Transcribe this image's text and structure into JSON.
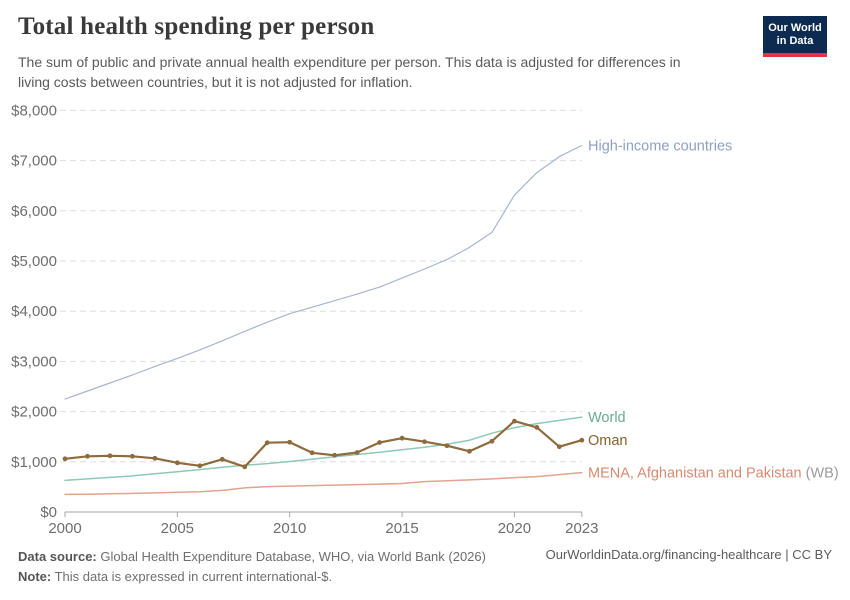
{
  "logo": {
    "line1": "Our World",
    "line2": "in Data",
    "bg": "#0d2b51",
    "stripe": "#e0363f"
  },
  "chart_data": {
    "type": "line",
    "title": "Total health spending per person",
    "subtitle_lines": [
      "The sum of public and private annual health expenditure per person. This data is adjusted for differences in",
      "living costs between countries, but it is not adjusted for inflation."
    ],
    "xlabel": "",
    "ylabel": "",
    "xlim": [
      2000,
      2023
    ],
    "ylim": [
      0,
      8000
    ],
    "grid": "horizontal-dashed",
    "legend_position": "end-of-line-labels",
    "x": [
      2000,
      2001,
      2002,
      2003,
      2004,
      2005,
      2006,
      2007,
      2008,
      2009,
      2010,
      2011,
      2012,
      2013,
      2014,
      2015,
      2016,
      2017,
      2018,
      2019,
      2020,
      2021,
      2022,
      2023
    ],
    "xticks": [
      {
        "v": 2000,
        "label": "2000"
      },
      {
        "v": 2005,
        "label": "2005"
      },
      {
        "v": 2010,
        "label": "2010"
      },
      {
        "v": 2015,
        "label": "2015"
      },
      {
        "v": 2020,
        "label": "2020"
      },
      {
        "v": 2023,
        "label": "2023"
      }
    ],
    "yticks": [
      {
        "v": 0,
        "label": "$0"
      },
      {
        "v": 1000,
        "label": "$1,000"
      },
      {
        "v": 2000,
        "label": "$2,000"
      },
      {
        "v": 3000,
        "label": "$3,000"
      },
      {
        "v": 4000,
        "label": "$4,000"
      },
      {
        "v": 5000,
        "label": "$5,000"
      },
      {
        "v": 6000,
        "label": "$6,000"
      },
      {
        "v": 7000,
        "label": "$7,000"
      },
      {
        "v": 8000,
        "label": "$8,000"
      }
    ],
    "series": [
      {
        "name": "High-income countries",
        "suffix": "",
        "color": "#a6b5d3",
        "label_color": "#8ca2c5",
        "suffix_color": "#9b9b9b",
        "width": 1.2,
        "markers": false,
        "values": [
          2250,
          2410,
          2570,
          2730,
          2900,
          3060,
          3230,
          3410,
          3600,
          3780,
          3950,
          4080,
          4210,
          4340,
          4480,
          4660,
          4840,
          5030,
          5270,
          5570,
          6310,
          6760,
          7080,
          7300
        ]
      },
      {
        "name": "World",
        "suffix": "",
        "color": "#8fc9b2",
        "label_color": "#68ab8d",
        "suffix_color": "#9b9b9b",
        "width": 1.5,
        "markers": false,
        "values": [
          630,
          660,
          690,
          720,
          760,
          800,
          845,
          890,
          930,
          965,
          1005,
          1050,
          1100,
          1145,
          1190,
          1240,
          1290,
          1350,
          1430,
          1570,
          1680,
          1760,
          1825,
          1890
        ]
      },
      {
        "name": "MENA, Afghanistan and Pakistan",
        "suffix": " (WB)",
        "color": "#e2a28e",
        "label_color": "#d88a70",
        "suffix_color": "#9b9b9b",
        "width": 1.5,
        "markers": false,
        "values": [
          350,
          355,
          362,
          370,
          380,
          392,
          405,
          430,
          480,
          505,
          515,
          525,
          535,
          545,
          555,
          568,
          605,
          622,
          640,
          660,
          685,
          705,
          745,
          785
        ]
      },
      {
        "name": "Oman",
        "suffix": "",
        "color": "#8d6b3d",
        "label_color": "#85622f",
        "suffix_color": "#9b9b9b",
        "width": 2.2,
        "markers": true,
        "values": [
          1060,
          1110,
          1120,
          1110,
          1070,
          980,
          920,
          1050,
          900,
          1380,
          1390,
          1180,
          1130,
          1185,
          1385,
          1470,
          1400,
          1320,
          1210,
          1410,
          1810,
          1685,
          1300,
          1430
        ]
      }
    ],
    "style": {
      "gridline_color": "#dedede",
      "axis_color": "#a6a6a6",
      "tick_label_color": "#6e6e6e"
    }
  },
  "footer": {
    "source_label": "Data source:",
    "source_text": " Global Health Expenditure Database, WHO, via World Bank (2026)",
    "note_label": "Note:",
    "note_text": " This data is expressed in current international-$.",
    "credit": "OurWorldinData.org/financing-healthcare | CC BY"
  }
}
